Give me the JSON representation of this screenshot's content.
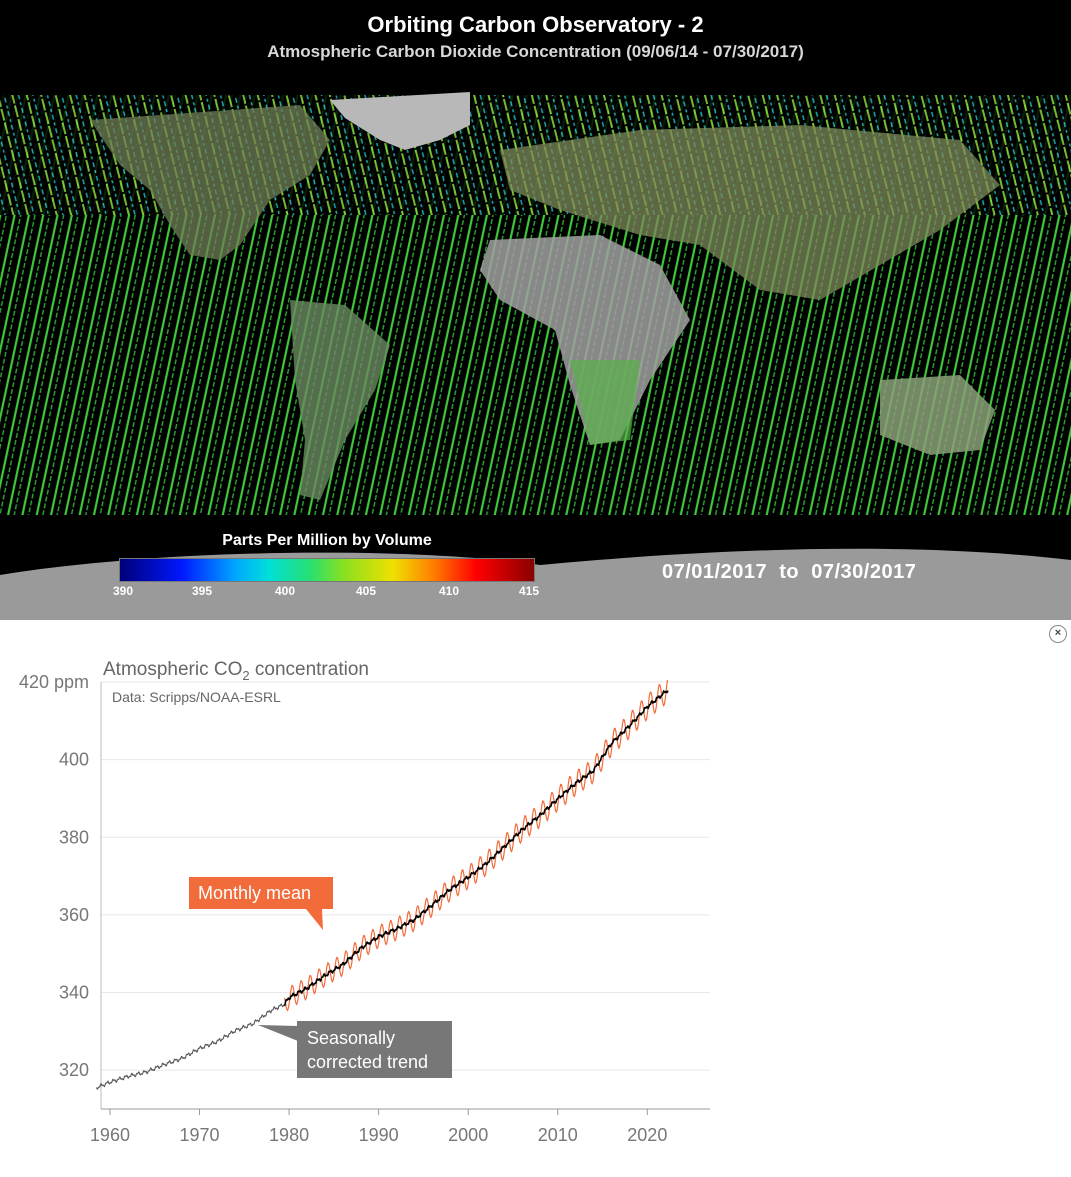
{
  "map": {
    "title": "Orbiting Carbon Observatory - 2",
    "subtitle": "Atmospheric Carbon Dioxide Concentration (09/06/14 - 07/30/2017)",
    "colorbar_title": "Parts Per Million by Volume",
    "colorbar_ticks": [
      "390",
      "395",
      "400",
      "405",
      "410",
      "415"
    ],
    "date_start": "07/01/2017",
    "date_to": "to",
    "date_end": "07/30/2017",
    "colors": {
      "low": "#00007a",
      "mid": "#28e070",
      "high": "#8a0000",
      "ocean_track": "#3cc83c"
    }
  },
  "close_label": "×",
  "chart_data": {
    "type": "line",
    "title_prefix": "Atmospheric CO",
    "title_sub": "2",
    "title_suffix": " concentration",
    "source": "Data: Scripps/NOAA-ESRL",
    "ytick_labels": [
      "420 ppm",
      "400",
      "380",
      "360",
      "340",
      "320"
    ],
    "yticks": [
      420,
      400,
      380,
      360,
      340,
      320
    ],
    "ylim": [
      310,
      420
    ],
    "xticks": [
      1960,
      1970,
      1980,
      1990,
      2000,
      2010,
      2020
    ],
    "xlim": [
      1959,
      2027
    ],
    "grid": true,
    "series": [
      {
        "name": "Seasonally corrected trend",
        "color": "#000000",
        "x": [
          1958.5,
          1960,
          1962,
          1964,
          1966,
          1968,
          1970,
          1972,
          1974,
          1976,
          1978,
          1979.5,
          1980,
          1982,
          1984,
          1986,
          1988,
          1990,
          1992,
          1994,
          1996,
          1998,
          2000,
          2002,
          2004,
          2006,
          2008,
          2010,
          2012,
          2014,
          2016,
          2018,
          2020,
          2022.3
        ],
        "y": [
          315.5,
          316.9,
          318.4,
          319.5,
          321.4,
          323.0,
          325.6,
          327.4,
          330.2,
          332.0,
          335.4,
          337.0,
          338.7,
          341.1,
          344.4,
          347.2,
          351.4,
          354.4,
          356.4,
          358.8,
          362.6,
          366.6,
          369.7,
          373.2,
          377.5,
          381.9,
          385.6,
          389.9,
          393.9,
          397.2,
          404.2,
          408.7,
          413.6,
          418.0
        ]
      },
      {
        "name": "Monthly mean",
        "color": "#f26b3a",
        "x_start": 1979.5,
        "x_end": 2022.3,
        "seasonal_amplitude": 3.2
      }
    ]
  },
  "callouts": {
    "monthly": "Monthly mean",
    "trend_line1": "Seasonally",
    "trend_line2": "corrected trend"
  }
}
